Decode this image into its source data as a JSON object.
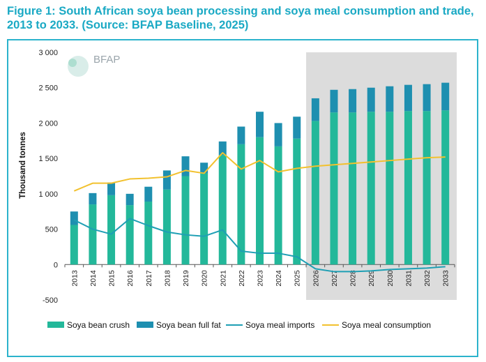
{
  "title_line1": "Figure 1: South African soya bean processing and soya meal consumption and trade,",
  "title_line2": "2013 to 2033. (Source: BFAP Baseline, 2025)",
  "logo_text": "BFAP",
  "colors": {
    "crush": "#23b89a",
    "full_fat": "#1e8fb0",
    "imports": "#1e9fb4",
    "consumption": "#f2c12e",
    "projection_shade": "#dcdcdc",
    "frame": "#2bb3cc",
    "title": "#1aa9c4"
  },
  "chart_data": {
    "type": "bar",
    "ylabel": "Thousand tonnes",
    "xlabel": "",
    "ylim": [
      -500,
      3000
    ],
    "yticks": [
      -500,
      0,
      500,
      1000,
      1500,
      2000,
      2500,
      3000
    ],
    "ytick_labels": [
      "-500",
      "0",
      "500",
      "1 000",
      "1 500",
      "2 000",
      "2 500",
      "3 000"
    ],
    "categories": [
      "2013",
      "2014",
      "2015",
      "2016",
      "2017",
      "2018",
      "2019",
      "2020",
      "2021",
      "2022",
      "2023",
      "2024",
      "2025",
      "2026",
      "2027",
      "2028",
      "2029",
      "2030",
      "2031",
      "2032",
      "2033"
    ],
    "projection_start": "2026",
    "legend_position": "bottom",
    "series": [
      {
        "name": "Soya bean crush",
        "kind": "bar",
        "stack": "a",
        "values": [
          560,
          850,
          980,
          840,
          890,
          1060,
          1250,
          1290,
          1550,
          1700,
          1800,
          1670,
          1780,
          2030,
          2150,
          2150,
          2160,
          2160,
          2170,
          2170,
          2180
        ]
      },
      {
        "name": "Soya bean full fat",
        "kind": "bar",
        "stack": "a",
        "values": [
          190,
          160,
          180,
          160,
          210,
          270,
          280,
          150,
          190,
          250,
          360,
          330,
          310,
          320,
          320,
          330,
          340,
          360,
          370,
          380,
          390
        ]
      },
      {
        "name": "Soya meal imports",
        "kind": "line",
        "values": [
          630,
          500,
          430,
          650,
          550,
          460,
          420,
          400,
          490,
          190,
          160,
          160,
          110,
          -60,
          -100,
          -100,
          -90,
          -70,
          -60,
          -50,
          -30
        ]
      },
      {
        "name": "Soya meal consumption",
        "kind": "line",
        "values": [
          1040,
          1150,
          1150,
          1210,
          1220,
          1240,
          1330,
          1290,
          1580,
          1350,
          1470,
          1310,
          1360,
          1390,
          1410,
          1430,
          1450,
          1470,
          1490,
          1510,
          1520
        ]
      }
    ]
  }
}
